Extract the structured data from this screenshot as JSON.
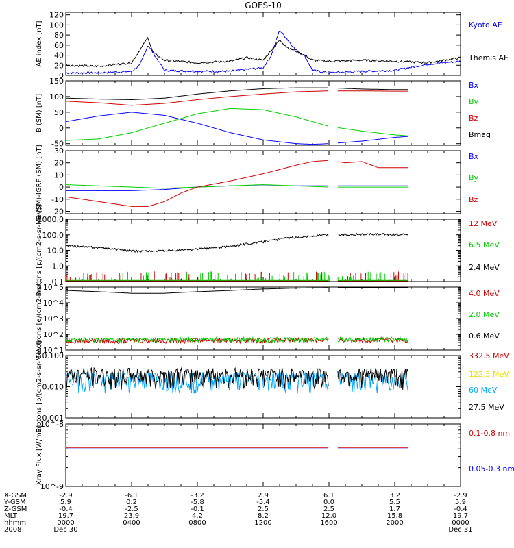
{
  "title": "GOES-10",
  "time_axis": {
    "ticks": [
      {
        "xgsm": "-2.9",
        "ygsm": "5.9",
        "zgsm": "-0.4",
        "mlt": "19.7",
        "hhmm": "0000",
        "date": "Dec 30"
      },
      {
        "xgsm": "-6.1",
        "ygsm": "0.2",
        "zgsm": "-2.5",
        "mlt": "23.9",
        "hhmm": "0400",
        "date": ""
      },
      {
        "xgsm": "-3.2",
        "ygsm": "-5.8",
        "zgsm": "-0.1",
        "mlt": "4.2",
        "hhmm": "0800",
        "date": ""
      },
      {
        "xgsm": "2.9",
        "ygsm": "-5.4",
        "zgsm": "2.5",
        "mlt": "8.2",
        "hhmm": "1200",
        "date": ""
      },
      {
        "xgsm": "6.1",
        "ygsm": "0.0",
        "zgsm": "2.5",
        "mlt": "12.0",
        "hhmm": "1600",
        "date": ""
      },
      {
        "xgsm": "3.2",
        "ygsm": "5.5",
        "zgsm": "1.7",
        "mlt": "15.8",
        "hhmm": "2000",
        "date": ""
      },
      {
        "xgsm": "-2.9",
        "ygsm": "5.9",
        "zgsm": "-0.4",
        "mlt": "19.7",
        "hhmm": "0000",
        "date": "Dec 31"
      }
    ],
    "row_labels": {
      "xgsm": "X-GSM",
      "ygsm": "Y-GSM",
      "zgsm": "Z-GSM",
      "mlt": "MLT",
      "hhmm": "hhmm",
      "year": "2008"
    }
  },
  "colors": {
    "black": "#000000",
    "blue": "#0000ff",
    "green": "#00cc00",
    "red": "#cc0000",
    "yellow": "#e0e000",
    "cyan": "#00aaff"
  },
  "chart_data": [
    {
      "type": "line",
      "ylabel": "AE index [nT]",
      "ylim": [
        0,
        125
      ],
      "yscale": "linear",
      "yticks": [
        0,
        20,
        40,
        60,
        80,
        100,
        120
      ],
      "series": [
        {
          "name": "Kyoto AE",
          "color": "blue",
          "x": [
            0,
            2,
            4,
            4.5,
            5,
            5.3,
            6,
            8,
            10,
            11,
            12,
            12.5,
            13,
            13.5,
            14,
            14.5,
            15,
            16,
            18,
            20,
            22,
            24
          ],
          "y": [
            5,
            5,
            8,
            20,
            60,
            45,
            10,
            8,
            8,
            12,
            15,
            40,
            90,
            70,
            50,
            40,
            10,
            5,
            8,
            10,
            22,
            28
          ]
        },
        {
          "name": "Themis AE",
          "color": "black",
          "x": [
            0,
            2,
            4,
            4.5,
            5,
            5.3,
            6,
            8,
            10,
            11,
            12,
            12.5,
            13,
            13.5,
            14,
            14.5,
            15,
            16,
            18,
            20,
            22,
            24
          ],
          "y": [
            20,
            18,
            25,
            50,
            75,
            45,
            30,
            25,
            28,
            35,
            30,
            50,
            70,
            55,
            48,
            40,
            30,
            28,
            30,
            28,
            25,
            35
          ]
        }
      ]
    },
    {
      "type": "line",
      "ylabel": "B (SM) [nT]",
      "ylim": [
        -55,
        150
      ],
      "yscale": "linear",
      "yticks": [
        -50,
        0,
        50,
        100,
        150
      ],
      "gap": [
        16.0,
        16.5
      ],
      "end": 20.8,
      "series": [
        {
          "name": "Bx",
          "color": "blue",
          "x": [
            0,
            2,
            4,
            6,
            8,
            10,
            12,
            14,
            15,
            16,
            18,
            20,
            20.8
          ],
          "y": [
            20,
            38,
            50,
            40,
            15,
            -15,
            -38,
            -50,
            -52,
            -50,
            -42,
            -30,
            -27
          ]
        },
        {
          "name": "By",
          "color": "green",
          "x": [
            0,
            2,
            4,
            6,
            8,
            10,
            12,
            14,
            16,
            18,
            20,
            20.8
          ],
          "y": [
            -40,
            -35,
            -15,
            15,
            45,
            62,
            58,
            35,
            5,
            -10,
            -22,
            -25
          ]
        },
        {
          "name": "Bz",
          "color": "red",
          "x": [
            0,
            2,
            4,
            6,
            8,
            10,
            12,
            14,
            16,
            18,
            20,
            20.8
          ],
          "y": [
            85,
            80,
            72,
            78,
            90,
            100,
            108,
            115,
            118,
            118,
            117,
            117
          ]
        },
        {
          "name": "Bmag",
          "color": "black",
          "x": [
            0,
            2,
            4,
            6,
            8,
            10,
            12,
            14,
            16,
            18,
            20,
            20.8
          ],
          "y": [
            95,
            92,
            90,
            95,
            108,
            118,
            125,
            128,
            128,
            124,
            122,
            122
          ]
        }
      ]
    },
    {
      "type": "line",
      "ylabel": "B (SM)-IGRF (SM) [nT]",
      "ylim": [
        -22,
        30
      ],
      "yscale": "linear",
      "yticks": [
        -20,
        -10,
        0,
        10,
        20,
        30
      ],
      "gap": [
        16.0,
        16.5
      ],
      "end": 20.8,
      "series": [
        {
          "name": "Bx",
          "color": "blue",
          "x": [
            0,
            2,
            4,
            6,
            8,
            10,
            12,
            14,
            16,
            18,
            20,
            20.8
          ],
          "y": [
            -3,
            -3,
            -3,
            -2,
            0,
            1,
            1,
            1,
            1,
            1,
            1,
            1
          ]
        },
        {
          "name": "By",
          "color": "green",
          "x": [
            0,
            2,
            4,
            6,
            8,
            10,
            12,
            14,
            16,
            18,
            20,
            20.8
          ],
          "y": [
            2,
            1,
            0,
            -1,
            0,
            1,
            2,
            1,
            0,
            0,
            0,
            0
          ]
        },
        {
          "name": "Bz",
          "color": "red",
          "x": [
            0,
            2,
            4,
            5,
            6,
            7,
            8,
            10,
            12,
            14,
            15,
            16,
            16.5,
            17,
            18,
            19,
            20,
            20.8
          ],
          "y": [
            -8,
            -12,
            -16,
            -16,
            -12,
            -5,
            0,
            5,
            11,
            18,
            21,
            22,
            21,
            20,
            21,
            16,
            16,
            16
          ]
        }
      ]
    },
    {
      "type": "line",
      "ylabel": "Protons [p/(cm2-s-sr-MeV)]",
      "ylim": [
        0.1,
        1000
      ],
      "yscale": "log",
      "ytick_labels": [
        "0.1",
        "1.0",
        "10.0",
        "100.0",
        "1000.0"
      ],
      "yticks": [
        0.1,
        1,
        10,
        100,
        1000
      ],
      "gap": [
        16.0,
        16.5
      ],
      "end": 20.8,
      "series": [
        {
          "name": "12 MeV",
          "color": "red",
          "x": [
            0,
            20.8
          ],
          "y": [
            0.1,
            0.1
          ]
        },
        {
          "name": "6.5 MeV",
          "color": "green",
          "x": [
            0,
            20.8
          ],
          "y": [
            0.12,
            0.12
          ]
        },
        {
          "name": "2.4 MeV",
          "color": "black",
          "x": [
            0,
            2,
            4,
            6,
            8,
            10,
            12,
            14,
            16,
            18,
            20,
            20.8
          ],
          "y": [
            20,
            15,
            9,
            9,
            12,
            18,
            35,
            70,
            100,
            110,
            105,
            110
          ]
        }
      ]
    },
    {
      "type": "line",
      "ylabel": "Electrons [e/(cm2-s-sr)]",
      "ylim": [
        10,
        100000
      ],
      "yscale": "log",
      "yticks": [
        10,
        100,
        1000,
        10000,
        100000
      ],
      "ytick_labels": [
        "10^1",
        "10^2",
        "10^3",
        "10^4",
        "10^5"
      ],
      "gap": [
        16.0,
        16.5
      ],
      "end": 20.8,
      "series": [
        {
          "name": "4.0 MeV",
          "color": "red",
          "x": [
            0,
            20.8
          ],
          "y": [
            40,
            45
          ]
        },
        {
          "name": "2.0 MeV",
          "color": "green",
          "x": [
            0,
            20.8
          ],
          "y": [
            45,
            50
          ]
        },
        {
          "name": "0.6 MeV",
          "color": "black",
          "x": [
            0,
            2,
            4,
            6,
            8,
            10,
            12,
            14,
            16,
            18,
            20,
            20.8
          ],
          "y": [
            60000,
            50000,
            40000,
            40000,
            50000,
            60000,
            75000,
            85000,
            90000,
            95000,
            95000,
            95000
          ]
        }
      ]
    },
    {
      "type": "line",
      "ylabel": "Protons [p/(cm2-s-sr-MeV)]",
      "ylim": [
        0.001,
        0.1
      ],
      "yscale": "log",
      "yticks": [
        0.001,
        0.01,
        0.1
      ],
      "ytick_labels": [
        "0.001",
        "0.010",
        "0.100"
      ],
      "gap": [
        16.0,
        16.5
      ],
      "end": 20.8,
      "series": [
        {
          "name": "332.5 MeV",
          "color": "red",
          "x": [],
          "y": []
        },
        {
          "name": "122.5 MeV",
          "color": "yellow",
          "x": [],
          "y": []
        },
        {
          "name": "60 MeV",
          "color": "cyan",
          "x": [
            0,
            20.8
          ],
          "y": [
            0.015,
            0.015
          ]
        },
        {
          "name": "27.5 MeV",
          "color": "black",
          "x": [
            0,
            20.8
          ],
          "y": [
            0.02,
            0.02
          ]
        }
      ]
    },
    {
      "type": "line",
      "ylabel": "Xray Flux [W/m2]",
      "ylim": [
        1e-09,
        1e-08
      ],
      "yscale": "log",
      "yticks": [
        1e-09,
        1e-08
      ],
      "ytick_labels": [
        "10^-9",
        "10^-8"
      ],
      "gap": [
        16.0,
        16.5
      ],
      "end": 20.8,
      "series": [
        {
          "name": "0.1-0.8 nm",
          "color": "red",
          "x": [
            0,
            20.8
          ],
          "y": [
            4.2e-09,
            4.2e-09
          ]
        },
        {
          "name": "0.05-0.3 nm",
          "color": "blue",
          "x": [
            0,
            20.8
          ],
          "y": [
            4e-09,
            4e-09
          ]
        }
      ]
    }
  ]
}
